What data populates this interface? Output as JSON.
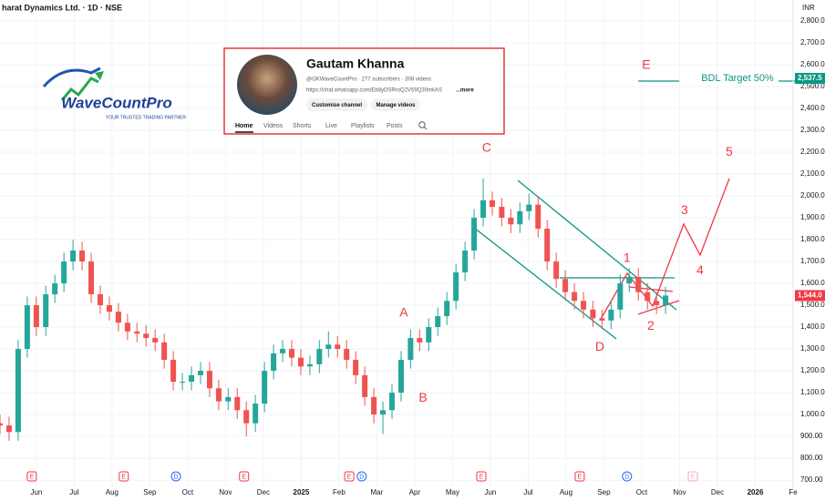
{
  "chart_data": {
    "type": "candlestick",
    "title": "harat Dynamics Ltd. · 1D · NSE",
    "currency": "INR",
    "up_color": "#26a69a",
    "down_color": "#ef5350",
    "grid": true,
    "xlim": [
      0.04,
      21
    ],
    "ylim": [
      667,
      2896
    ],
    "xticks": [
      {
        "value": 1,
        "label": "Jun"
      },
      {
        "value": 2,
        "label": "Jul"
      },
      {
        "value": 3,
        "label": "Aug"
      },
      {
        "value": 4,
        "label": "Sep"
      },
      {
        "value": 5,
        "label": "Oct"
      },
      {
        "value": 6,
        "label": "Nov"
      },
      {
        "value": 7,
        "label": "Dec"
      },
      {
        "value": 8,
        "label": "2025"
      },
      {
        "value": 9,
        "label": "Feb"
      },
      {
        "value": 10,
        "label": "Mar"
      },
      {
        "value": 11,
        "label": "Apr"
      },
      {
        "value": 12,
        "label": "May"
      },
      {
        "value": 13,
        "label": "Jun"
      },
      {
        "value": 14,
        "label": "Jul"
      },
      {
        "value": 15,
        "label": "Aug"
      },
      {
        "value": 16,
        "label": "Sep"
      },
      {
        "value": 17,
        "label": "Oct"
      },
      {
        "value": 18,
        "label": "Nov"
      },
      {
        "value": 19,
        "label": "Dec"
      },
      {
        "value": 20,
        "label": "2026"
      },
      {
        "value": 21,
        "label": "Fe"
      }
    ],
    "yticks": [
      {
        "value": 700,
        "label": "700.00"
      },
      {
        "value": 800,
        "label": "800.00"
      },
      {
        "value": 900,
        "label": "900.00"
      },
      {
        "value": 1000,
        "label": "1,000.00"
      },
      {
        "value": 1100,
        "label": "1,100.00"
      },
      {
        "value": 1200,
        "label": "1,200.00"
      },
      {
        "value": 1300,
        "label": "1,300.00"
      },
      {
        "value": 1400,
        "label": "1,400.00"
      },
      {
        "value": 1500,
        "label": "1,500.00"
      },
      {
        "value": 1600,
        "label": "1,600.00"
      },
      {
        "value": 1700,
        "label": "1,700.00"
      },
      {
        "value": 1800,
        "label": "1,800.00"
      },
      {
        "value": 1900,
        "label": "1,900.00"
      },
      {
        "value": 2000,
        "label": "2,000.00"
      },
      {
        "value": 2100,
        "label": "2,100.00"
      },
      {
        "value": 2200,
        "label": "2,200.00"
      },
      {
        "value": 2300,
        "label": "2,300.00"
      },
      {
        "value": 2400,
        "label": "2,400.00"
      },
      {
        "value": 2500,
        "label": "2,500.00"
      },
      {
        "value": 2600,
        "label": "2,600.00"
      },
      {
        "value": 2700,
        "label": "2,700.00"
      },
      {
        "value": 2800,
        "label": "2,800.00"
      }
    ],
    "x": [
      0.04,
      0.28,
      0.52,
      0.76,
      1.0,
      1.25,
      1.49,
      1.73,
      1.97,
      2.21,
      2.45,
      2.69,
      2.93,
      3.17,
      3.41,
      3.66,
      3.9,
      4.14,
      4.38,
      4.62,
      4.86,
      5.1,
      5.34,
      5.58,
      5.82,
      6.07,
      6.31,
      6.55,
      6.79,
      7.03,
      7.27,
      7.51,
      7.75,
      7.99,
      8.23,
      8.48,
      8.72,
      8.96,
      9.2,
      9.44,
      9.68,
      9.92,
      10.16,
      10.4,
      10.64,
      10.89,
      11.13,
      11.37,
      11.61,
      11.85,
      12.09,
      12.33,
      12.57,
      12.81,
      13.05,
      13.3,
      13.54,
      13.78,
      14.02,
      14.26,
      14.5,
      14.74,
      14.98,
      15.22,
      15.46,
      15.71,
      15.95,
      16.19,
      16.43,
      16.67,
      16.91,
      17.15,
      17.39,
      17.63
    ],
    "open": [
      960,
      950,
      920,
      1300,
      1500,
      1400,
      1550,
      1600,
      1700,
      1750,
      1700,
      1550,
      1500,
      1470,
      1420,
      1380,
      1370,
      1350,
      1330,
      1250,
      1150,
      1150,
      1180,
      1200,
      1120,
      1060,
      1080,
      1020,
      960,
      1050,
      1200,
      1280,
      1300,
      1260,
      1220,
      1230,
      1300,
      1320,
      1300,
      1250,
      1180,
      1080,
      1000,
      1020,
      1100,
      1250,
      1350,
      1330,
      1400,
      1450,
      1520,
      1650,
      1750,
      1900,
      1980,
      1950,
      1900,
      1870,
      1930,
      1960,
      1850,
      1700,
      1620,
      1560,
      1520,
      1480,
      1440,
      1430,
      1480,
      1600,
      1630,
      1560,
      1520,
      1500
    ],
    "high": [
      1000,
      990,
      1340,
      1540,
      1540,
      1590,
      1640,
      1740,
      1800,
      1790,
      1740,
      1590,
      1540,
      1510,
      1460,
      1420,
      1410,
      1390,
      1370,
      1290,
      1190,
      1220,
      1240,
      1240,
      1160,
      1120,
      1120,
      1060,
      1090,
      1240,
      1320,
      1340,
      1340,
      1300,
      1270,
      1340,
      1380,
      1360,
      1340,
      1290,
      1220,
      1120,
      1060,
      1140,
      1290,
      1390,
      1390,
      1440,
      1490,
      1560,
      1690,
      1790,
      1940,
      2080,
      2020,
      1990,
      1940,
      1970,
      2010,
      2000,
      1890,
      1740,
      1660,
      1600,
      1560,
      1520,
      1480,
      1520,
      1640,
      1670,
      1670,
      1600,
      1560,
      1584
    ],
    "low": [
      910,
      880,
      880,
      1260,
      1360,
      1360,
      1510,
      1560,
      1660,
      1660,
      1510,
      1460,
      1430,
      1380,
      1340,
      1330,
      1310,
      1290,
      1210,
      1110,
      1110,
      1110,
      1140,
      1080,
      1020,
      1020,
      980,
      900,
      920,
      1010,
      1160,
      1240,
      1220,
      1180,
      1180,
      1190,
      1260,
      1260,
      1210,
      1140,
      1040,
      960,
      910,
      980,
      1060,
      1210,
      1290,
      1290,
      1360,
      1410,
      1480,
      1610,
      1710,
      1860,
      1910,
      1860,
      1830,
      1830,
      1890,
      1810,
      1660,
      1580,
      1520,
      1480,
      1440,
      1400,
      1390,
      1390,
      1440,
      1560,
      1520,
      1480,
      1460,
      1460
    ],
    "close": [
      950,
      920,
      1300,
      1500,
      1400,
      1550,
      1600,
      1700,
      1750,
      1700,
      1550,
      1500,
      1470,
      1420,
      1380,
      1370,
      1350,
      1330,
      1250,
      1150,
      1150,
      1180,
      1200,
      1120,
      1060,
      1080,
      1020,
      960,
      1050,
      1200,
      1280,
      1300,
      1260,
      1220,
      1230,
      1300,
      1320,
      1300,
      1250,
      1180,
      1080,
      1000,
      1020,
      1100,
      1250,
      1350,
      1330,
      1400,
      1450,
      1520,
      1650,
      1750,
      1900,
      1980,
      1950,
      1900,
      1870,
      1930,
      1960,
      1850,
      1700,
      1620,
      1560,
      1520,
      1480,
      1440,
      1430,
      1480,
      1600,
      1630,
      1560,
      1520,
      1500,
      1544
    ],
    "price_labels": [
      {
        "value": 2537.5,
        "label": "2,537.5",
        "color": "#089981"
      },
      {
        "value": 1544.0,
        "label": "1,544.0",
        "color": "#f23645"
      }
    ],
    "annotations": [
      {
        "text": "E",
        "x": 17.12,
        "y": 2596,
        "color": "#f23645"
      },
      {
        "text": "5",
        "x": 19.31,
        "y": 2200,
        "color": "#f23645"
      },
      {
        "text": "C",
        "x": 12.9,
        "y": 2217,
        "color": "#f23645"
      },
      {
        "text": "3",
        "x": 18.13,
        "y": 1933,
        "color": "#f23645"
      },
      {
        "text": "1",
        "x": 16.61,
        "y": 1713,
        "color": "#f23645"
      },
      {
        "text": "4",
        "x": 18.54,
        "y": 1658,
        "color": "#f23645"
      },
      {
        "text": "A",
        "x": 10.71,
        "y": 1463,
        "color": "#f23645"
      },
      {
        "text": "B",
        "x": 11.22,
        "y": 1075,
        "color": "#f23645"
      },
      {
        "text": "D",
        "x": 15.89,
        "y": 1308,
        "color": "#f23645"
      },
      {
        "text": "2",
        "x": 17.24,
        "y": 1404,
        "color": "#f23645"
      },
      {
        "text": "BDL Target 50%",
        "x": 19.53,
        "y": 2537.5,
        "color": "#089981"
      }
    ],
    "events": [
      {
        "label": "E",
        "x": 0.88
      },
      {
        "label": "E",
        "x": 3.31
      },
      {
        "label": "D",
        "x": 4.69
      },
      {
        "label": "E",
        "x": 6.49
      },
      {
        "label": "E",
        "x": 9.27
      },
      {
        "label": "D",
        "x": 9.6
      },
      {
        "label": "E",
        "x": 12.76
      },
      {
        "label": "E",
        "x": 15.36
      },
      {
        "label": "D",
        "x": 16.61
      },
      {
        "label": "E",
        "x": 18.35
      }
    ]
  },
  "channel_card": {
    "name": "Gautam Khanna",
    "meta": "@GKWaveCountPro · 277 subscribers · 308 videos",
    "link": "https://chat.whatsapp.com/Eb8yDSRroQ2V59Q30mkAS",
    "more": "...more",
    "buttons": [
      "Customise channel",
      "Manage videos"
    ],
    "tabs": [
      "Home",
      "Videos",
      "Shorts",
      "Live",
      "Playlists",
      "Posts"
    ]
  },
  "logo": {
    "name": "WaveCountPro",
    "tagline": "YOUR TRUSTED TRADING PARTNER"
  }
}
